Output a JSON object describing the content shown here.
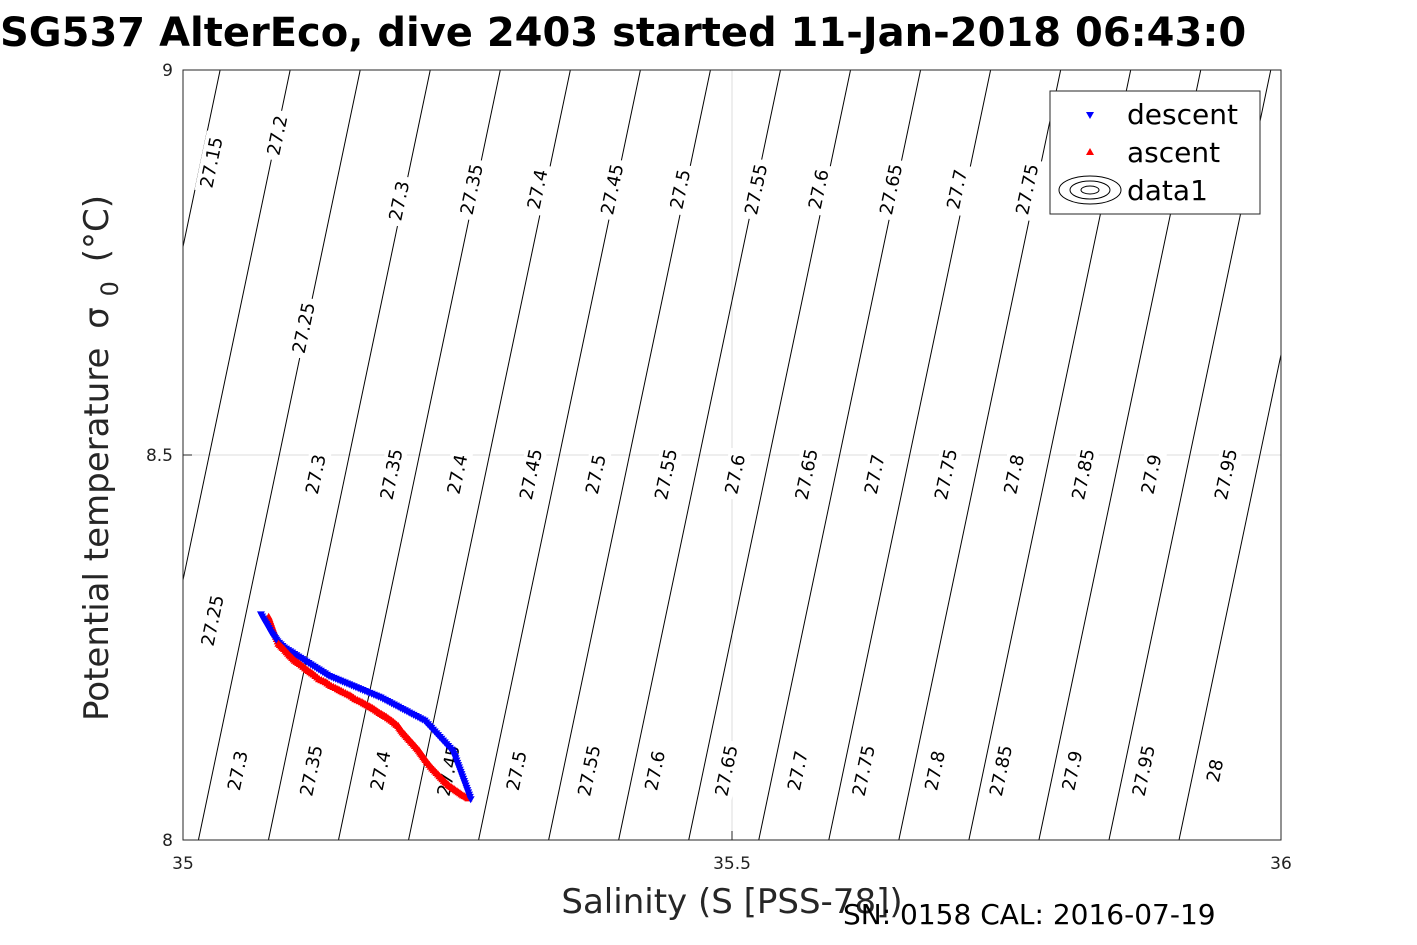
{
  "title": "SG537 AlterEco, dive 2403 started 11-Jan-2018 06:43:0",
  "footer": "SN: 0158  CAL: 2016-07-19",
  "chart_data": {
    "type": "scatter",
    "xlabel": "Salinity (S [PSS-78])",
    "ylabel_main": "Potential temperature",
    "ylabel_sigma": "σ",
    "ylabel_sub": "0",
    "ylabel_unit": "(°C)",
    "xlim": [
      35,
      36
    ],
    "ylim": [
      8,
      9
    ],
    "x_ticks": [
      {
        "value": 35,
        "label": "35"
      },
      {
        "value": 35.5,
        "label": "35.5"
      },
      {
        "value": 36,
        "label": "36"
      }
    ],
    "y_ticks": [
      {
        "value": 8,
        "label": "8"
      },
      {
        "value": 8.5,
        "label": "8.5"
      },
      {
        "value": 9,
        "label": "9"
      }
    ],
    "grid": true,
    "legend": {
      "position": "top-right",
      "entries": [
        {
          "name": "descent",
          "marker": "triangle-down",
          "color": "#0000ff"
        },
        {
          "name": "ascent",
          "marker": "triangle-up",
          "color": "#ff0000"
        },
        {
          "name": "data1",
          "marker": "contour",
          "color": "#000000"
        }
      ]
    },
    "density_contours": {
      "min": 27.1,
      "max": 28.0,
      "step": 0.05,
      "color": "#000000"
    },
    "contour_labels": [
      {
        "label": "27.15",
        "s": 35.026,
        "t": 8.88
      },
      {
        "label": "27.2",
        "s": 35.086,
        "t": 8.915
      },
      {
        "label": "27.3",
        "s": 35.197,
        "t": 8.83
      },
      {
        "label": "27.35",
        "s": 35.263,
        "t": 8.845
      },
      {
        "label": "27.4",
        "s": 35.323,
        "t": 8.845
      },
      {
        "label": "27.45",
        "s": 35.391,
        "t": 8.845
      },
      {
        "label": "27.5",
        "s": 35.453,
        "t": 8.845
      },
      {
        "label": "27.55",
        "s": 35.522,
        "t": 8.845
      },
      {
        "label": "27.6",
        "s": 35.579,
        "t": 8.845
      },
      {
        "label": "27.65",
        "s": 35.645,
        "t": 8.845
      },
      {
        "label": "27.7",
        "s": 35.705,
        "t": 8.845
      },
      {
        "label": "27.75",
        "s": 35.769,
        "t": 8.845
      },
      {
        "label": "27.25",
        "s": 35.11,
        "t": 8.665
      },
      {
        "label": "27.3",
        "s": 35.121,
        "t": 8.475
      },
      {
        "label": "27.35",
        "s": 35.19,
        "t": 8.475
      },
      {
        "label": "27.4",
        "s": 35.25,
        "t": 8.475
      },
      {
        "label": "27.45",
        "s": 35.317,
        "t": 8.475
      },
      {
        "label": "27.5",
        "s": 35.376,
        "t": 8.475
      },
      {
        "label": "27.55",
        "s": 35.44,
        "t": 8.475
      },
      {
        "label": "27.6",
        "s": 35.503,
        "t": 8.475
      },
      {
        "label": "27.65",
        "s": 35.568,
        "t": 8.475
      },
      {
        "label": "27.7",
        "s": 35.63,
        "t": 8.475
      },
      {
        "label": "27.75",
        "s": 35.695,
        "t": 8.475
      },
      {
        "label": "27.8",
        "s": 35.757,
        "t": 8.475
      },
      {
        "label": "27.85",
        "s": 35.82,
        "t": 8.475
      },
      {
        "label": "27.9",
        "s": 35.882,
        "t": 8.475
      },
      {
        "label": "27.95",
        "s": 35.95,
        "t": 8.475
      },
      {
        "label": "27.25",
        "s": 35.027,
        "t": 8.285
      },
      {
        "label": "27.3",
        "s": 35.05,
        "t": 8.09
      },
      {
        "label": "27.35",
        "s": 35.117,
        "t": 8.09
      },
      {
        "label": "27.4",
        "s": 35.18,
        "t": 8.09
      },
      {
        "label": "27.45",
        "s": 35.242,
        "t": 8.09
      },
      {
        "label": "27.5",
        "s": 35.304,
        "t": 8.09
      },
      {
        "label": "27.55",
        "s": 35.37,
        "t": 8.09
      },
      {
        "label": "27.6",
        "s": 35.43,
        "t": 8.09
      },
      {
        "label": "27.65",
        "s": 35.495,
        "t": 8.09
      },
      {
        "label": "27.7",
        "s": 35.56,
        "t": 8.09
      },
      {
        "label": "27.75",
        "s": 35.62,
        "t": 8.09
      },
      {
        "label": "27.8",
        "s": 35.685,
        "t": 8.09
      },
      {
        "label": "27.85",
        "s": 35.745,
        "t": 8.09
      },
      {
        "label": "27.9",
        "s": 35.81,
        "t": 8.09
      },
      {
        "label": "27.95",
        "s": 35.875,
        "t": 8.09
      },
      {
        "label": "28",
        "s": 35.94,
        "t": 8.09
      }
    ],
    "series": [
      {
        "name": "descent",
        "color": "#0000ff",
        "marker": "triangle-down",
        "x": [
          35.071,
          35.074,
          35.077,
          35.08,
          35.083,
          35.086,
          35.089,
          35.092,
          35.133,
          35.18,
          35.22,
          35.246,
          35.262
        ],
        "y": [
          8.293,
          8.285,
          8.278,
          8.27,
          8.264,
          8.258,
          8.254,
          8.25,
          8.213,
          8.185,
          8.155,
          8.115,
          8.053
        ]
      },
      {
        "name": "ascent",
        "color": "#ff0000",
        "marker": "triangle-up",
        "x": [
          35.078,
          35.083,
          35.087,
          35.092,
          35.097,
          35.102,
          35.108,
          35.113,
          35.119,
          35.124,
          35.13,
          35.135,
          35.141,
          35.146,
          35.152,
          35.157,
          35.163,
          35.168,
          35.174,
          35.179,
          35.185,
          35.19,
          35.196,
          35.2,
          35.205,
          35.21,
          35.215,
          35.219,
          35.223,
          35.227,
          35.231,
          35.235,
          35.239,
          35.243,
          35.247,
          35.251,
          35.255,
          35.258,
          35.26
        ],
        "y": [
          8.29,
          8.27,
          8.255,
          8.248,
          8.24,
          8.233,
          8.227,
          8.221,
          8.215,
          8.209,
          8.205,
          8.2,
          8.196,
          8.192,
          8.188,
          8.183,
          8.179,
          8.175,
          8.17,
          8.165,
          8.16,
          8.155,
          8.148,
          8.14,
          8.132,
          8.124,
          8.116,
          8.108,
          8.1,
          8.093,
          8.087,
          8.081,
          8.075,
          8.07,
          8.066,
          8.062,
          8.058,
          8.056,
          8.054
        ]
      }
    ]
  }
}
